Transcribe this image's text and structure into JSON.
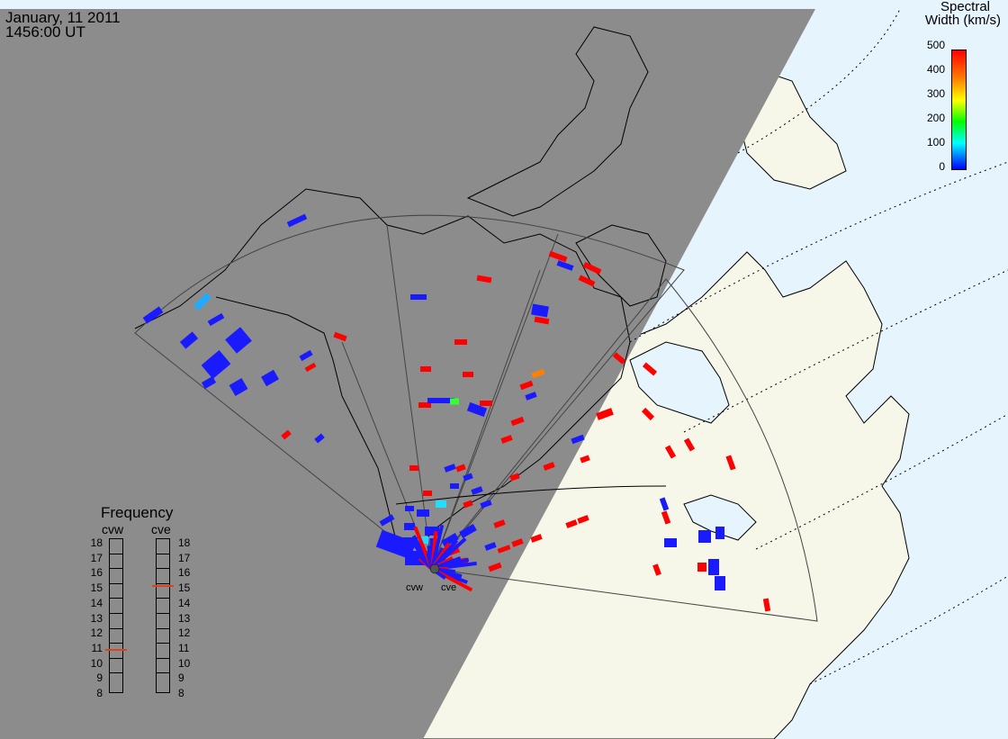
{
  "header": {
    "date": "January, 11 2011",
    "time": "1456:00 UT"
  },
  "colorbar": {
    "title_line1": "Spectral",
    "title_line2": "Width (km/s)",
    "ticks": [
      "500",
      "400",
      "300",
      "200",
      "100",
      "0"
    ],
    "colors": [
      "#0000ff",
      "#00a0ff",
      "#00ffff",
      "#00ff00",
      "#ffff00",
      "#ff8000",
      "#ff0000"
    ]
  },
  "frequency": {
    "title": "Frequency",
    "radars": [
      {
        "name": "cvw",
        "selected": "11"
      },
      {
        "name": "cve",
        "selected": "15"
      }
    ],
    "levels": [
      "18",
      "17",
      "16",
      "15",
      "14",
      "13",
      "12",
      "11",
      "10",
      "9",
      "8"
    ]
  },
  "radar_sites": [
    {
      "label": "cvw"
    },
    {
      "label": "cve"
    }
  ],
  "colors": {
    "night": "#8c8c8c",
    "land": "#f6f6e9",
    "ocean": "#e6f4fd",
    "high": "#ff0000",
    "low": "#1a1aff"
  }
}
